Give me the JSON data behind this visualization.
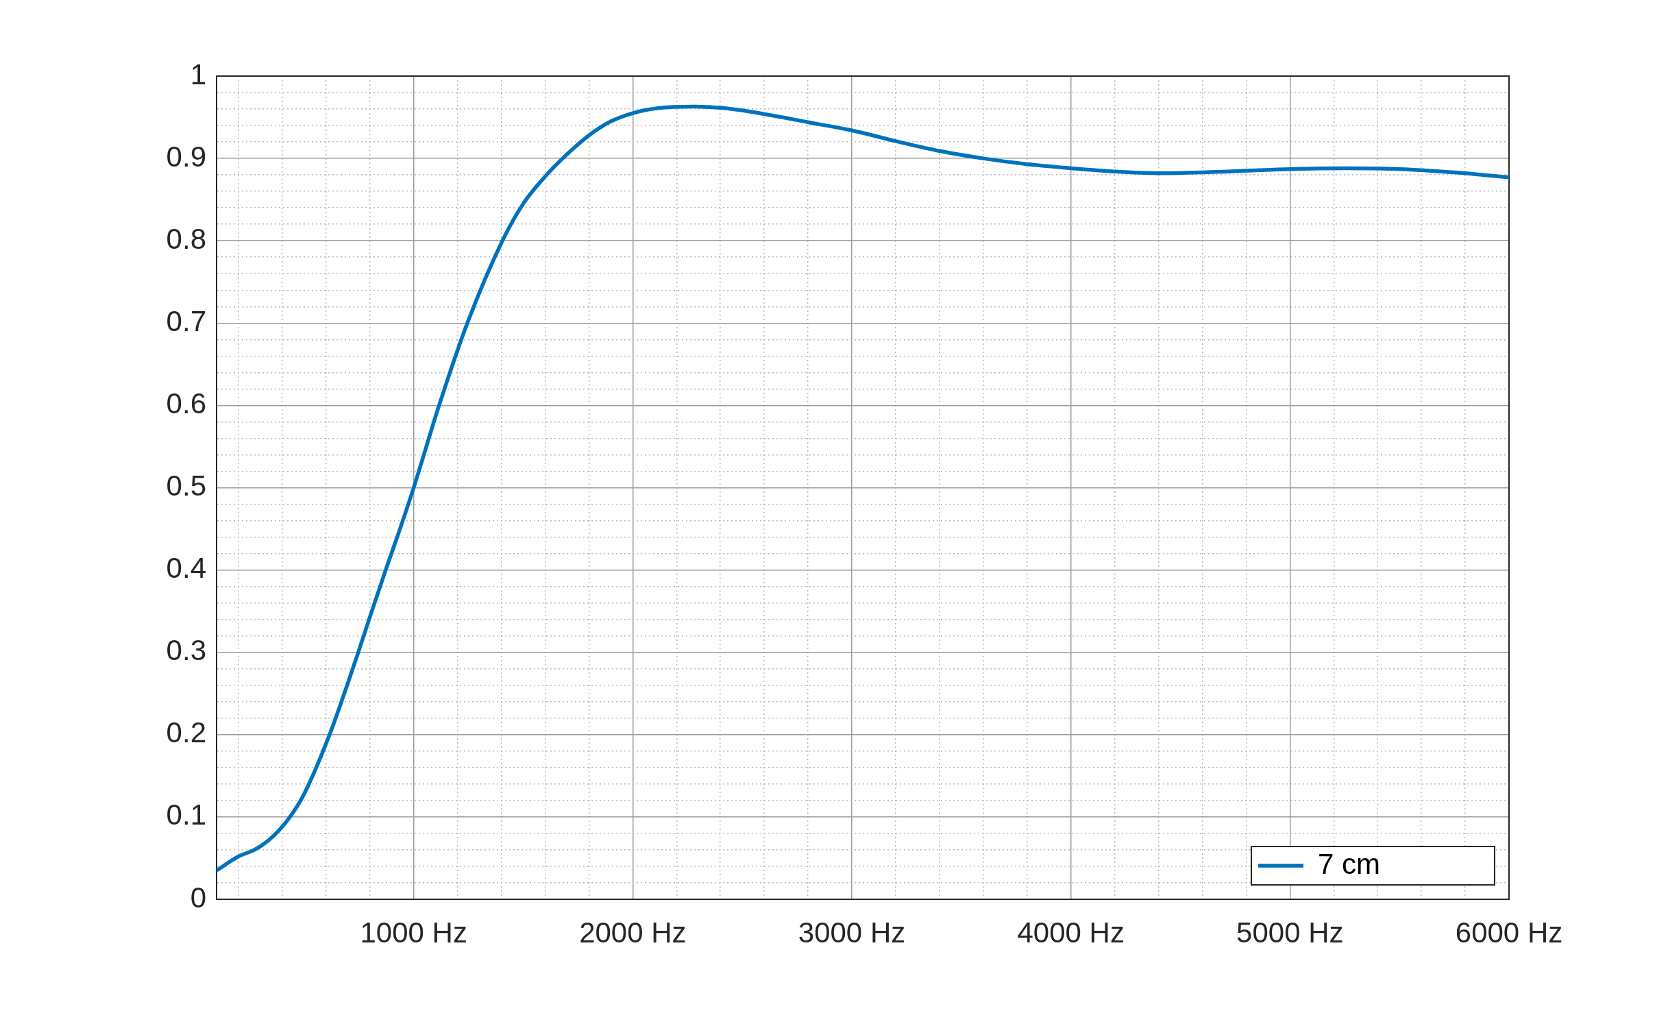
{
  "chart_data": {
    "type": "line",
    "x": [
      100,
      200,
      280,
      360,
      435,
      500,
      616,
      696,
      747,
      800,
      872,
      935,
      1000,
      1116,
      1245,
      1405,
      1500,
      1600,
      1700,
      1800,
      1900,
      2000,
      2116,
      2277,
      2418,
      2598,
      2799,
      3000,
      3200,
      3400,
      3600,
      3800,
      4000,
      4200,
      4400,
      4600,
      4800,
      5000,
      5250,
      5500,
      5750,
      6000
    ],
    "series": [
      {
        "name": "7 cm",
        "color": "#0072bd",
        "values": [
          0.035,
          0.052,
          0.061,
          0.077,
          0.1,
          0.128,
          0.2,
          0.26,
          0.3,
          0.343,
          0.4,
          0.448,
          0.5,
          0.6,
          0.7,
          0.8,
          0.845,
          0.878,
          0.905,
          0.928,
          0.945,
          0.955,
          0.961,
          0.963,
          0.961,
          0.954,
          0.944,
          0.934,
          0.921,
          0.909,
          0.9,
          0.893,
          0.888,
          0.884,
          0.882,
          0.883,
          0.885,
          0.887,
          0.888,
          0.887,
          0.883,
          0.877
        ]
      }
    ],
    "xlim": [
      100,
      6000
    ],
    "ylim": [
      0,
      1
    ],
    "xticks": [
      {
        "value": 200,
        "label": null
      },
      {
        "value": 400,
        "label": null
      },
      {
        "value": 600,
        "label": null
      },
      {
        "value": 800,
        "label": null
      },
      {
        "value": 1000,
        "label": "1000 Hz"
      },
      {
        "value": 1200,
        "label": null
      },
      {
        "value": 1400,
        "label": null
      },
      {
        "value": 1600,
        "label": null
      },
      {
        "value": 1800,
        "label": null
      },
      {
        "value": 2000,
        "label": "2000 Hz"
      },
      {
        "value": 2200,
        "label": null
      },
      {
        "value": 2400,
        "label": null
      },
      {
        "value": 2600,
        "label": null
      },
      {
        "value": 2800,
        "label": null
      },
      {
        "value": 3000,
        "label": "3000 Hz"
      },
      {
        "value": 3200,
        "label": null
      },
      {
        "value": 3400,
        "label": null
      },
      {
        "value": 3600,
        "label": null
      },
      {
        "value": 3800,
        "label": null
      },
      {
        "value": 4000,
        "label": "4000 Hz"
      },
      {
        "value": 4200,
        "label": null
      },
      {
        "value": 4400,
        "label": null
      },
      {
        "value": 4600,
        "label": null
      },
      {
        "value": 4800,
        "label": null
      },
      {
        "value": 5000,
        "label": "5000 Hz"
      },
      {
        "value": 5200,
        "label": null
      },
      {
        "value": 5400,
        "label": null
      },
      {
        "value": 5600,
        "label": null
      },
      {
        "value": 5800,
        "label": null
      },
      {
        "value": 6000,
        "label": "6000 Hz"
      }
    ],
    "yticks": [
      0,
      {
        "value": 0.02,
        "label": null
      },
      {
        "value": 0.04,
        "label": null
      },
      {
        "value": 0.06,
        "label": null
      },
      {
        "value": 0.08,
        "label": null
      },
      0.1,
      {
        "value": 0.12,
        "label": null
      },
      {
        "value": 0.14,
        "label": null
      },
      {
        "value": 0.16,
        "label": null
      },
      {
        "value": 0.18,
        "label": null
      },
      0.2,
      {
        "value": 0.22,
        "label": null
      },
      {
        "value": 0.24,
        "label": null
      },
      {
        "value": 0.26,
        "label": null
      },
      {
        "value": 0.28,
        "label": null
      },
      0.3,
      {
        "value": 0.32,
        "label": null
      },
      {
        "value": 0.34,
        "label": null
      },
      {
        "value": 0.36,
        "label": null
      },
      {
        "value": 0.38,
        "label": null
      },
      0.4,
      {
        "value": 0.42,
        "label": null
      },
      {
        "value": 0.44,
        "label": null
      },
      {
        "value": 0.46,
        "label": null
      },
      {
        "value": 0.48,
        "label": null
      },
      0.5,
      {
        "value": 0.52,
        "label": null
      },
      {
        "value": 0.54,
        "label": null
      },
      {
        "value": 0.56,
        "label": null
      },
      {
        "value": 0.58,
        "label": null
      },
      0.6,
      {
        "value": 0.62,
        "label": null
      },
      {
        "value": 0.64,
        "label": null
      },
      {
        "value": 0.66,
        "label": null
      },
      {
        "value": 0.68,
        "label": null
      },
      0.7,
      {
        "value": 0.72,
        "label": null
      },
      {
        "value": 0.74,
        "label": null
      },
      {
        "value": 0.76,
        "label": null
      },
      {
        "value": 0.78,
        "label": null
      },
      0.8,
      {
        "value": 0.82,
        "label": null
      },
      {
        "value": 0.84,
        "label": null
      },
      {
        "value": 0.86,
        "label": null
      },
      {
        "value": 0.88,
        "label": null
      },
      0.9,
      {
        "value": 0.92,
        "label": null
      },
      {
        "value": 0.94,
        "label": null
      },
      {
        "value": 0.96,
        "label": null
      },
      {
        "value": 0.98,
        "label": null
      },
      1
    ],
    "grid": true,
    "legend": "bottom right"
  }
}
